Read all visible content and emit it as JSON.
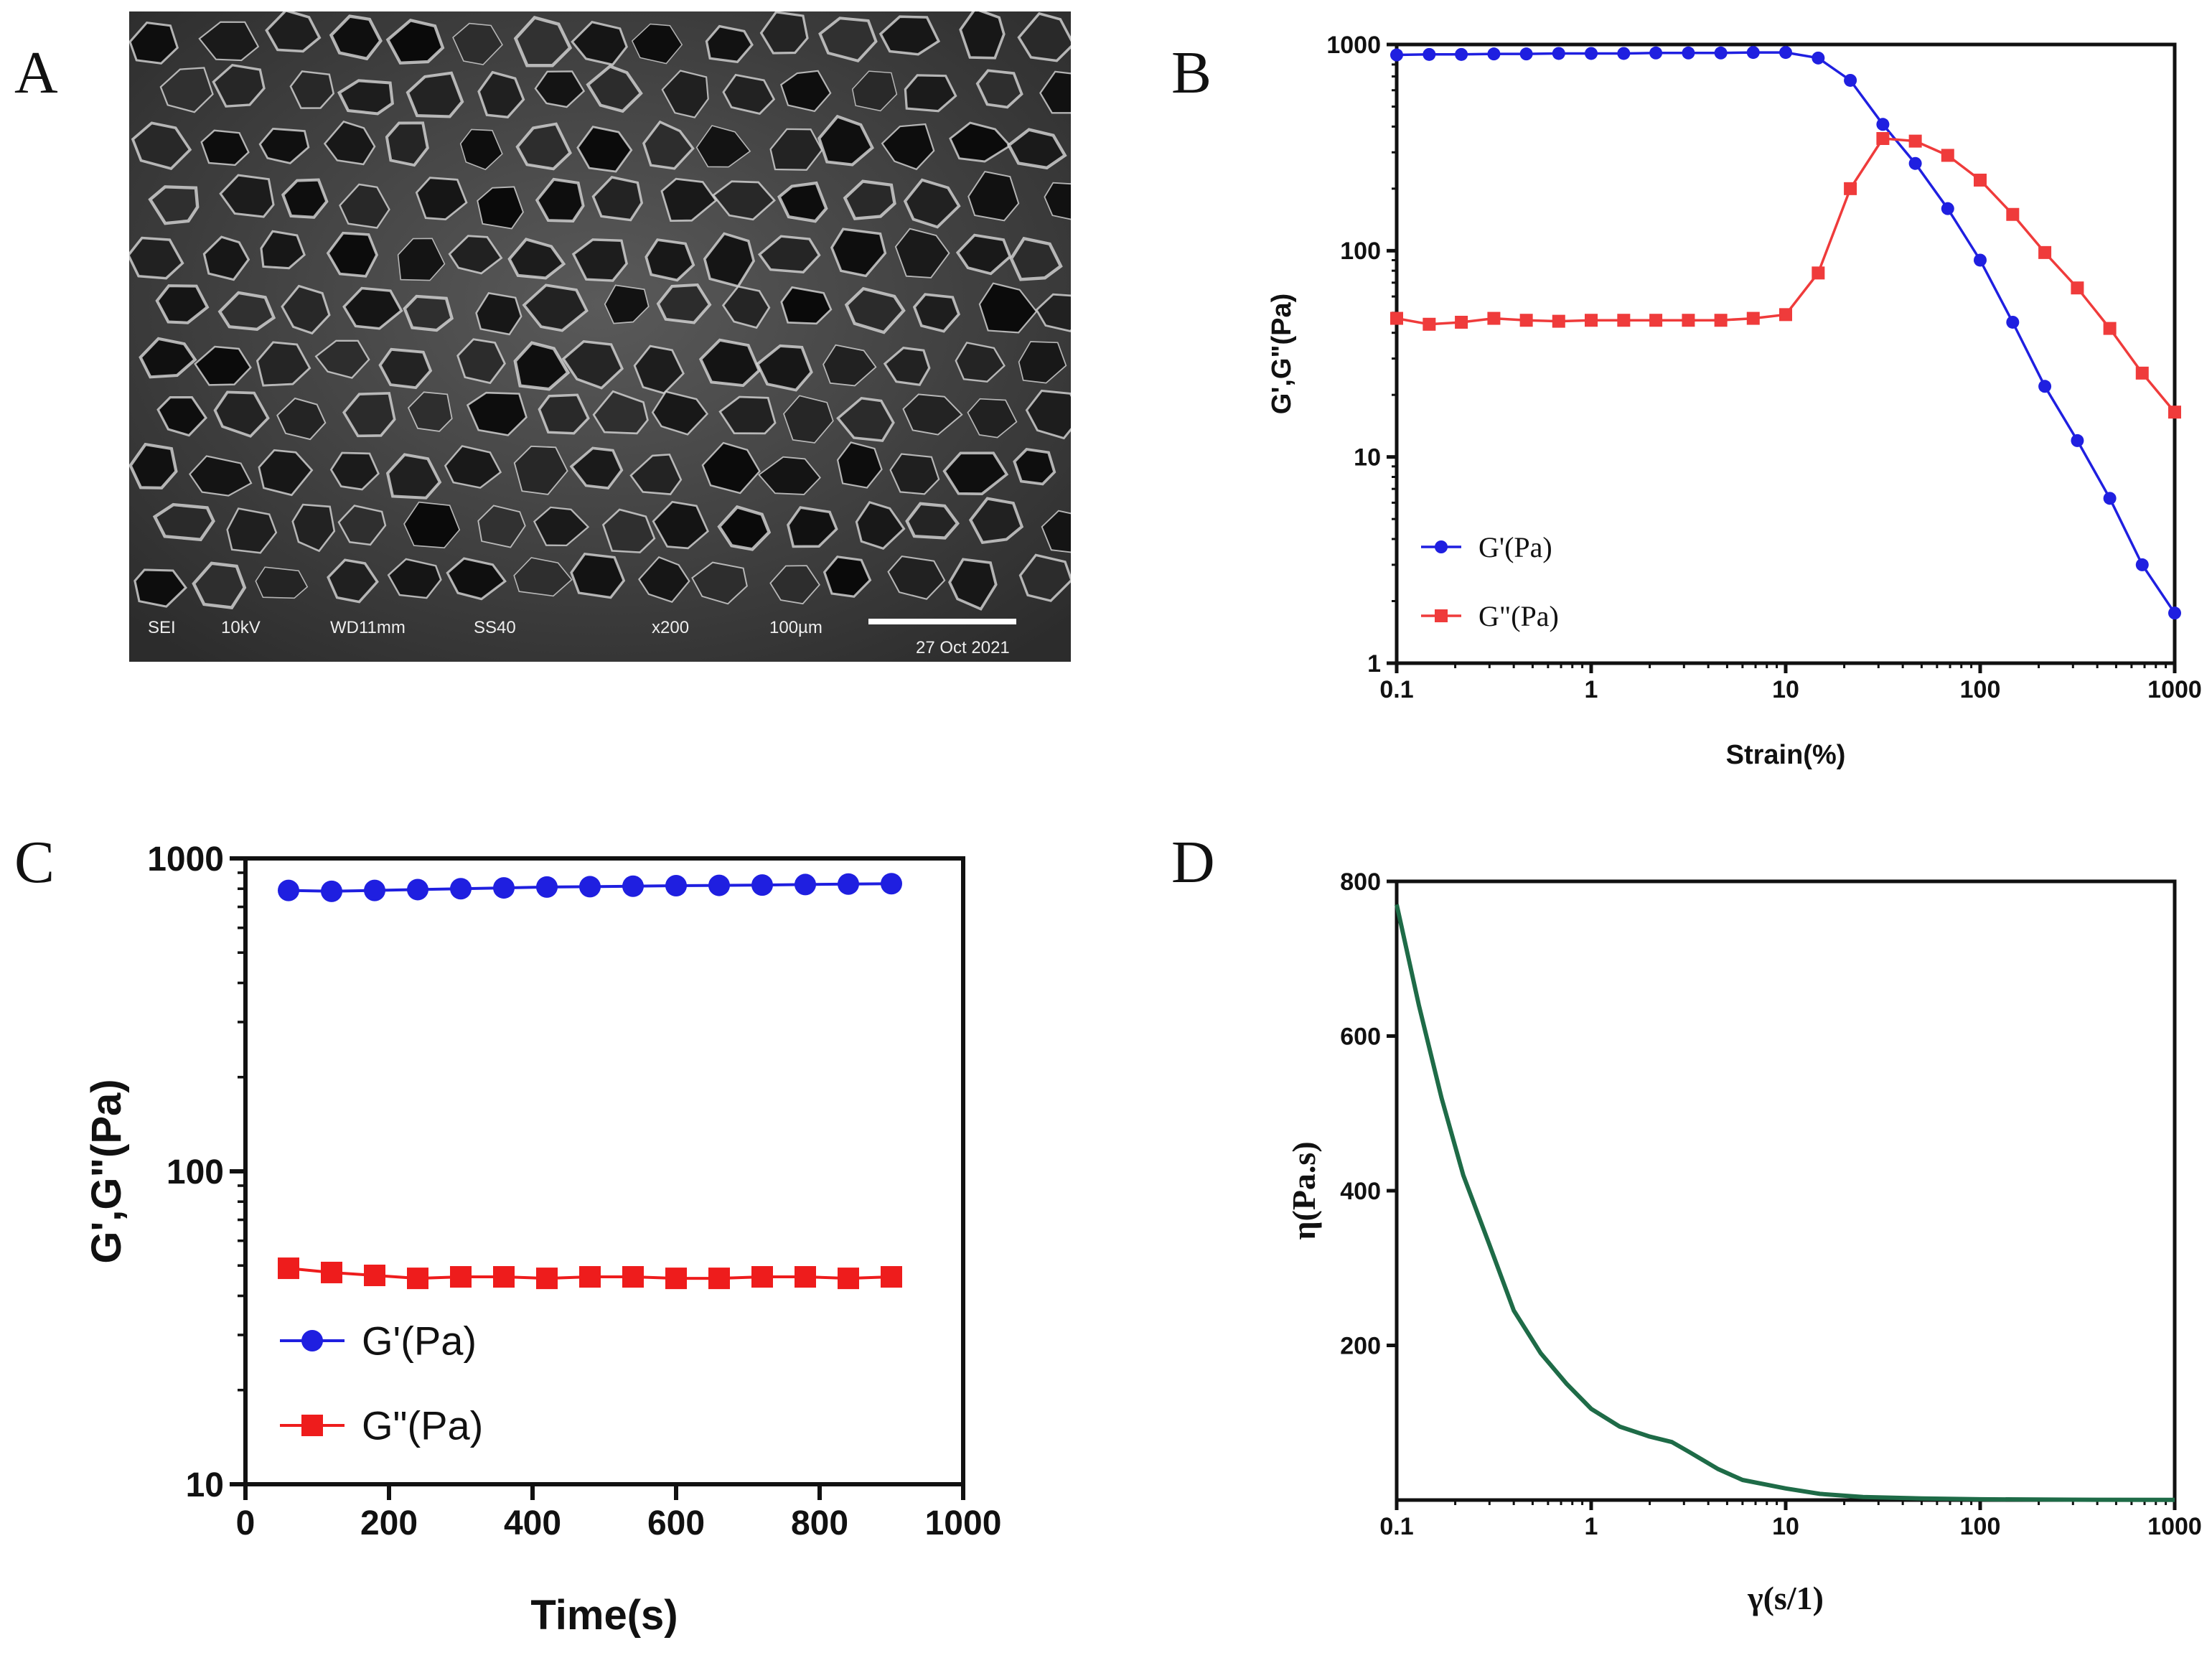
{
  "panels": {
    "a": "A",
    "b": "B",
    "c": "C",
    "d": "D"
  },
  "sem": {
    "mode": "SEI",
    "voltage": "10kV",
    "working_distance": "WD11mm",
    "spot_size": "SS40",
    "magnification": "x200",
    "scale_label": "100µm",
    "date": "27 Oct 2021"
  },
  "chart_data": [
    {
      "panel": "B",
      "type": "line",
      "xscale": "log",
      "yscale": "log",
      "xlim": [
        0.1,
        1000
      ],
      "ylim": [
        1,
        1000
      ],
      "xlabel": "Strain(%)",
      "ylabel": "G',G\"(Pa)",
      "xticks": [
        "0.1",
        "1",
        "10",
        "100",
        "1000"
      ],
      "yticks": [
        "1",
        "10",
        "100",
        "1000"
      ],
      "legend_position": "bottom-left",
      "series": [
        {
          "name": "G'(Pa)",
          "color": "#1f1fe0",
          "marker": "circle",
          "points": [
            [
              0.1,
              890
            ],
            [
              0.147,
              895
            ],
            [
              0.215,
              895
            ],
            [
              0.316,
              900
            ],
            [
              0.464,
              900
            ],
            [
              0.681,
              905
            ],
            [
              1.0,
              905
            ],
            [
              1.47,
              905
            ],
            [
              2.15,
              910
            ],
            [
              3.16,
              910
            ],
            [
              4.64,
              910
            ],
            [
              6.81,
              915
            ],
            [
              10.0,
              915
            ],
            [
              14.7,
              860
            ],
            [
              21.5,
              670
            ],
            [
              31.6,
              410
            ],
            [
              46.4,
              265
            ],
            [
              68.1,
              160
            ],
            [
              100,
              90
            ],
            [
              147,
              45
            ],
            [
              215,
              22
            ],
            [
              316,
              12
            ],
            [
              464,
              6.3
            ],
            [
              681,
              3.0
            ],
            [
              1000,
              1.75
            ]
          ]
        },
        {
          "name": "G\"(Pa)",
          "color": "#ef3b3b",
          "marker": "square",
          "points": [
            [
              0.1,
              47
            ],
            [
              0.147,
              44
            ],
            [
              0.215,
              45
            ],
            [
              0.316,
              47
            ],
            [
              0.464,
              46
            ],
            [
              0.681,
              45.5
            ],
            [
              1.0,
              46
            ],
            [
              1.47,
              46
            ],
            [
              2.15,
              46
            ],
            [
              3.16,
              46
            ],
            [
              4.64,
              46
            ],
            [
              6.81,
              47
            ],
            [
              10.0,
              49
            ],
            [
              14.7,
              78
            ],
            [
              21.5,
              200
            ],
            [
              31.6,
              350
            ],
            [
              46.4,
              340
            ],
            [
              68.1,
              290
            ],
            [
              100,
              220
            ],
            [
              147,
              150
            ],
            [
              215,
              98
            ],
            [
              316,
              66
            ],
            [
              464,
              42
            ],
            [
              681,
              25.5
            ],
            [
              1000,
              16.5
            ]
          ]
        }
      ]
    },
    {
      "panel": "C",
      "type": "line",
      "xscale": "linear",
      "yscale": "log",
      "xlim": [
        0,
        1000
      ],
      "ylim": [
        10,
        1000
      ],
      "xlabel": "Time(s)",
      "ylabel": "G',G\"(Pa)",
      "xticks": [
        "0",
        "200",
        "400",
        "600",
        "800",
        "1000"
      ],
      "yticks": [
        "10",
        "100",
        "1000"
      ],
      "legend_position": "bottom-left",
      "series": [
        {
          "name": "G'(Pa)",
          "color": "#1f1fe0",
          "marker": "circle",
          "points": [
            [
              60,
              790
            ],
            [
              120,
              785
            ],
            [
              180,
              790
            ],
            [
              240,
              795
            ],
            [
              300,
              800
            ],
            [
              360,
              805
            ],
            [
              420,
              810
            ],
            [
              480,
              812
            ],
            [
              540,
              815
            ],
            [
              600,
              818
            ],
            [
              660,
              820
            ],
            [
              720,
              822
            ],
            [
              780,
              825
            ],
            [
              840,
              828
            ],
            [
              900,
              830
            ]
          ]
        },
        {
          "name": "G\"(Pa)",
          "color": "#ee1c1c",
          "marker": "square",
          "points": [
            [
              60,
              49
            ],
            [
              120,
              47.5
            ],
            [
              180,
              46.5
            ],
            [
              240,
              45.5
            ],
            [
              300,
              46
            ],
            [
              360,
              46
            ],
            [
              420,
              45.5
            ],
            [
              480,
              46
            ],
            [
              540,
              46
            ],
            [
              600,
              45.5
            ],
            [
              660,
              45.5
            ],
            [
              720,
              46
            ],
            [
              780,
              46
            ],
            [
              840,
              45.5
            ],
            [
              900,
              46
            ]
          ]
        }
      ]
    },
    {
      "panel": "D",
      "type": "line",
      "xscale": "log",
      "yscale": "linear",
      "xlim": [
        0.1,
        1000
      ],
      "ylim": [
        0,
        800
      ],
      "xlabel": "γ(s/1)",
      "ylabel": "η(Pa.s)",
      "xticks": [
        "0.1",
        "1",
        "10",
        "100",
        "1000"
      ],
      "yticks": [
        "200",
        "400",
        "600",
        "800"
      ],
      "series": [
        {
          "color": "#1e6b47",
          "marker": "none",
          "points": [
            [
              0.1,
              770
            ],
            [
              0.13,
              640
            ],
            [
              0.17,
              520
            ],
            [
              0.22,
              420
            ],
            [
              0.3,
              330
            ],
            [
              0.4,
              245
            ],
            [
              0.55,
              190
            ],
            [
              0.75,
              150
            ],
            [
              1.0,
              118
            ],
            [
              1.4,
              95
            ],
            [
              2.0,
              82
            ],
            [
              2.6,
              75
            ],
            [
              3.2,
              62
            ],
            [
              4.5,
              40
            ],
            [
              6.0,
              26
            ],
            [
              10,
              15
            ],
            [
              15,
              8
            ],
            [
              25,
              4
            ],
            [
              50,
              2
            ],
            [
              100,
              1
            ],
            [
              300,
              0.5
            ],
            [
              1000,
              0.2
            ]
          ]
        }
      ]
    }
  ]
}
